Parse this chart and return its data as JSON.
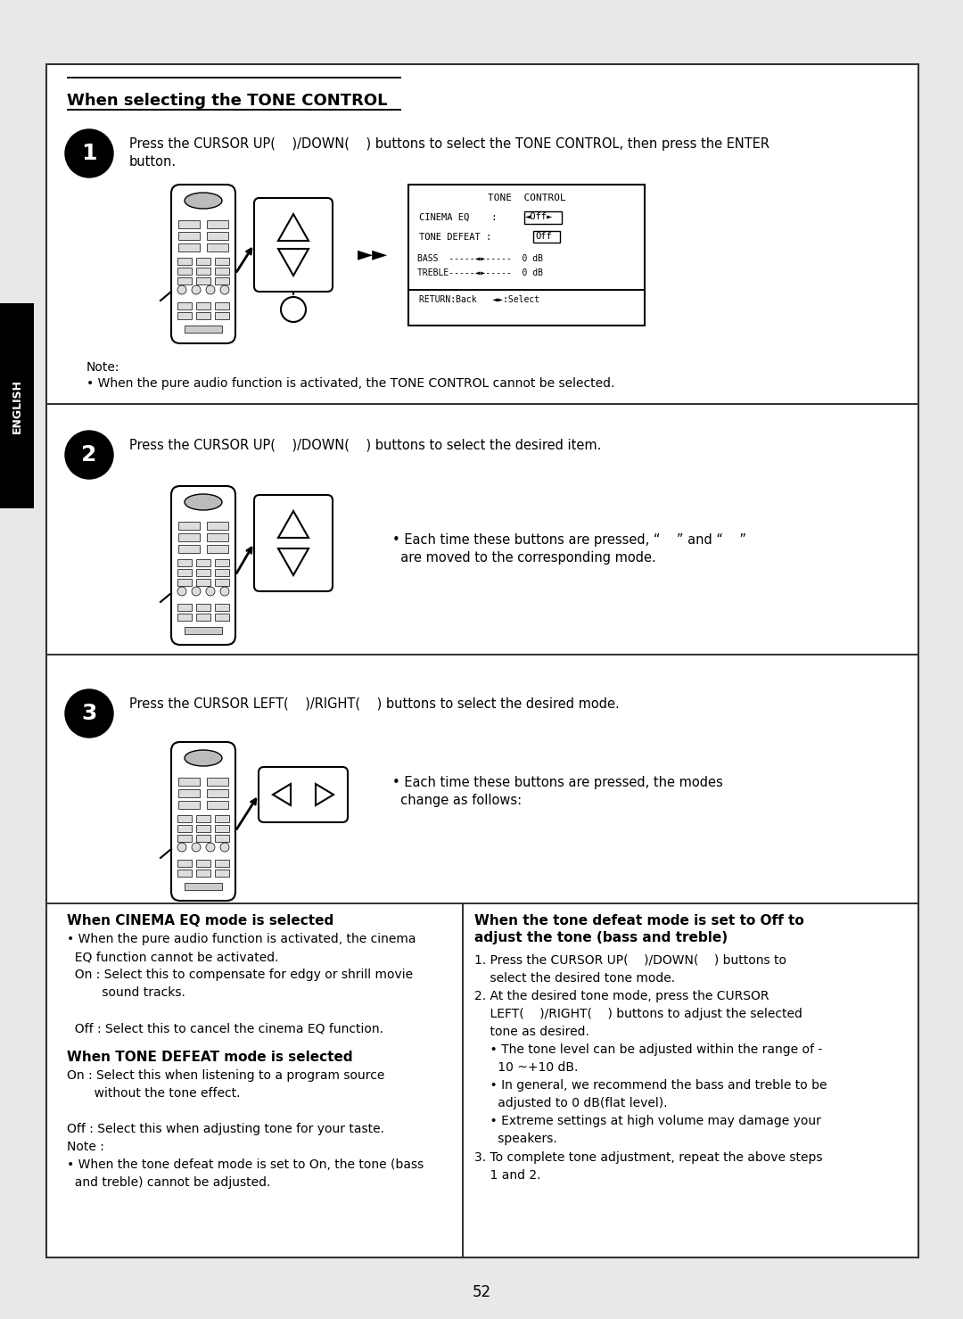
{
  "page_bg": "#ffffff",
  "outer_bg": "#e8e8e8",
  "border_color": "#333333",
  "page_number": "52",
  "english_tab_bg": "#000000",
  "english_tab_text": "ENGLISH",
  "section1_title": "When selecting the TONE CONTROL",
  "step1_text1": "Press the CURSOR UP(    )/DOWN(    ) buttons to select the TONE CONTROL, then press the ENTER",
  "step1_text2": "button.",
  "step2_text": "Press the CURSOR UP(    )/DOWN(    ) buttons to select the desired item.",
  "step3_text": "Press the CURSOR LEFT(    )/RIGHT(    ) buttons to select the desired mode.",
  "step2_bullet1": "• Each time these buttons are pressed, “    ” and “    ”",
  "step2_bullet2": "  are moved to the corresponding mode.",
  "step3_bullet1": "• Each time these buttons are pressed, the modes",
  "step3_bullet2": "  change as follows:",
  "note_line1": "Note:",
  "note_line2": "• When the pure audio function is activated, the TONE CONTROL cannot be selected.",
  "cinema_eq_title": "When CINEMA EQ mode is selected",
  "cinema_eq_body": "• When the pure audio function is activated, the cinema\n  EQ function cannot be activated.\n  On : Select this to compensate for edgy or shrill movie\n         sound tracks.\n\n  Off : Select this to cancel the cinema EQ function.",
  "tone_defeat_title": "When TONE DEFEAT mode is selected",
  "tone_defeat_body": "On : Select this when listening to a program source\n       without the tone effect.\n\nOff : Select this when adjusting tone for your taste.\nNote :\n• When the tone defeat mode is set to On, the tone (bass\n  and treble) cannot be adjusted.",
  "right_col_title1": "When the tone defeat mode is set to Off to",
  "right_col_title2": "adjust the tone (bass and treble)",
  "right_col_body": "1. Press the CURSOR UP(    )/DOWN(    ) buttons to\n    select the desired tone mode.\n2. At the desired tone mode, press the CURSOR\n    LEFT(    )/RIGHT(    ) buttons to adjust the selected\n    tone as desired.\n    • The tone level can be adjusted within the range of -\n      10 ~+10 dB.\n    • In general, we recommend the bass and treble to be\n      adjusted to 0 dB(flat level).\n    • Extreme settings at high volume may damage your\n      speakers.\n3. To complete tone adjustment, repeat the above steps\n    1 and 2."
}
